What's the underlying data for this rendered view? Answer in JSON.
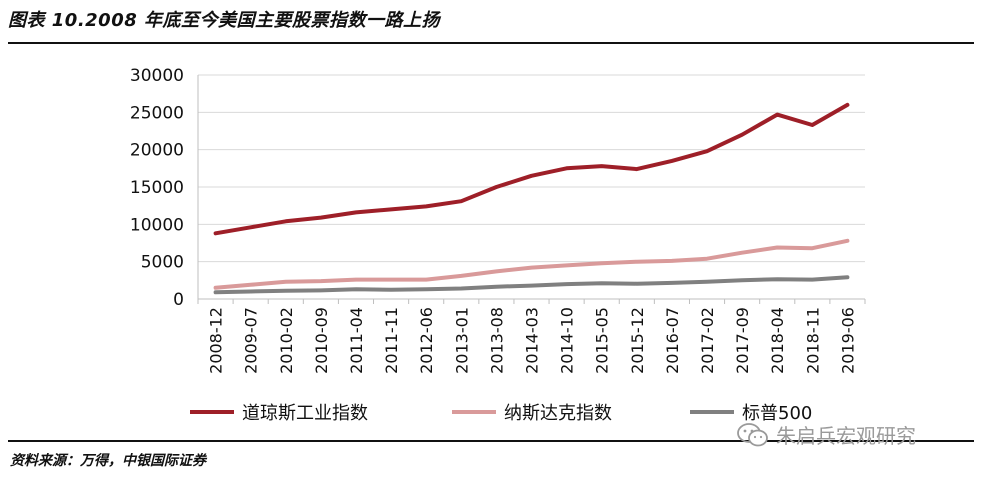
{
  "figure": {
    "title": "图表 10.2008 年底至今美国主要股票指数一路上扬",
    "source": "资料来源：万得，中银国际证券",
    "watermark": "朱启兵宏观研究"
  },
  "chart_data": {
    "type": "line",
    "title": "图表 10.2008 年底至今美国主要股票指数一路上扬",
    "x": [
      "2008-12",
      "2009-07",
      "2010-02",
      "2010-09",
      "2011-04",
      "2011-11",
      "2012-06",
      "2013-01",
      "2013-08",
      "2014-03",
      "2014-10",
      "2015-05",
      "2015-12",
      "2016-07",
      "2017-02",
      "2017-09",
      "2018-04",
      "2018-11",
      "2019-06"
    ],
    "series": [
      {
        "name": "道琼斯工业指数",
        "color": "#9e1f28",
        "values": [
          8800,
          9600,
          10400,
          10900,
          11600,
          12000,
          12400,
          13100,
          15000,
          16500,
          17500,
          17800,
          17400,
          18500,
          19800,
          22000,
          24700,
          23300,
          26000
        ]
      },
      {
        "name": "纳斯达克指数",
        "color": "#d99a9a",
        "values": [
          1500,
          1900,
          2300,
          2400,
          2600,
          2600,
          2600,
          3100,
          3700,
          4200,
          4500,
          4800,
          5000,
          5100,
          5400,
          6200,
          6900,
          6800,
          7800
        ]
      },
      {
        "name": "标普500",
        "color": "#808080",
        "values": [
          900,
          1000,
          1100,
          1150,
          1300,
          1250,
          1300,
          1400,
          1650,
          1800,
          2000,
          2100,
          2050,
          2150,
          2300,
          2500,
          2650,
          2600,
          2900
        ]
      }
    ],
    "ylim": [
      0,
      30000
    ],
    "yticks": [
      0,
      5000,
      10000,
      15000,
      20000,
      25000,
      30000
    ],
    "grid": true,
    "legend": "bottom"
  }
}
